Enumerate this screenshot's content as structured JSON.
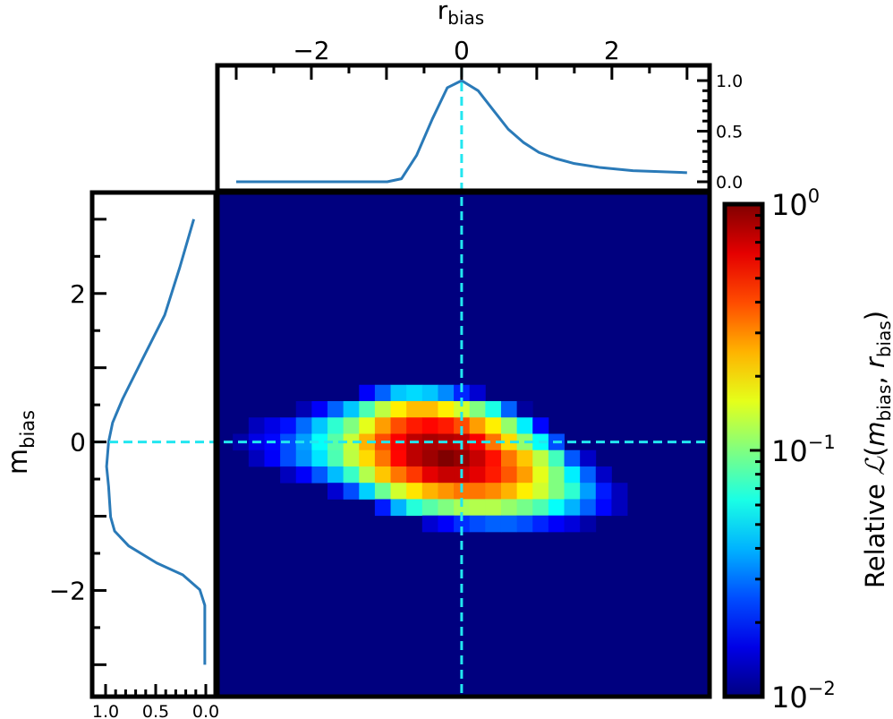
{
  "chart_data": {
    "type": "heatmap",
    "xlabel": "r",
    "xlabel_sub": "bias",
    "ylabel": "m",
    "ylabel_sub": "bias",
    "xlim": [
      -3.25,
      3.3
    ],
    "ylim": [
      -3.43,
      3.36
    ],
    "x_ticks": [
      {
        "v": -2,
        "label": "−2"
      },
      {
        "v": 0,
        "label": "0"
      },
      {
        "v": 2,
        "label": "2"
      }
    ],
    "y_ticks": [
      {
        "v": 2,
        "label": "2"
      },
      {
        "v": 0,
        "label": "0"
      },
      {
        "v": -2,
        "label": "−2"
      }
    ],
    "colormap": "jet",
    "background_color": "#00007f",
    "reference_line_color": "#22e6f0",
    "reference_lines": {
      "r": 0,
      "m": 0
    },
    "color_scale": "log",
    "color_range": [
      0.01,
      1
    ],
    "bin_width_r": 0.21,
    "bin_height_m": 0.22,
    "cells_log10": [
      {
        "m": 0.66,
        "r_start": -1.26,
        "values": [
          -1.76,
          -1.56,
          -1.36,
          -1.32,
          -1.36,
          -1.48,
          -1.68,
          -1.84
        ]
      },
      {
        "m": 0.44,
        "r_start": -2.1,
        "values": [
          -1.9,
          -1.76,
          -1.56,
          -1.36,
          -1.1,
          -0.88,
          -0.72,
          -0.62,
          -0.62,
          -0.72,
          -0.84,
          -1.0,
          -1.2,
          -1.56,
          -1.94
        ]
      },
      {
        "m": 0.22,
        "r_start": -2.73,
        "values": [
          -1.88,
          -1.8,
          -1.72,
          -1.54,
          -1.36,
          -1.16,
          -1.0,
          -0.8,
          -0.56,
          -0.4,
          -0.3,
          -0.26,
          -0.3,
          -0.4,
          -0.56,
          -0.72,
          -0.96,
          -1.28,
          -1.74
        ]
      },
      {
        "m": 0.0,
        "r_start": -2.94,
        "values": [
          -1.92,
          -1.8,
          -1.74,
          -1.6,
          -1.44,
          -1.24,
          -1.08,
          -0.86,
          -0.6,
          -0.4,
          -0.24,
          -0.12,
          -0.08,
          -0.1,
          -0.12,
          -0.24,
          -0.48,
          -0.68,
          -0.96,
          -1.24,
          -1.6
        ]
      },
      {
        "m": -0.22,
        "r_start": -2.73,
        "values": [
          -1.88,
          -1.76,
          -1.6,
          -1.46,
          -1.3,
          -1.1,
          -0.88,
          -0.68,
          -0.48,
          -0.26,
          -0.12,
          -0.06,
          0,
          -0.04,
          -0.14,
          -0.28,
          -0.48,
          -0.64,
          -0.88,
          -1.12,
          -1.58,
          -1.86
        ]
      },
      {
        "m": -0.44,
        "r_start": -2.31,
        "values": [
          -1.88,
          -1.76,
          -1.58,
          -1.38,
          -1.14,
          -0.9,
          -0.64,
          -0.48,
          -0.36,
          -0.2,
          -0.14,
          -0.14,
          -0.2,
          -0.3,
          -0.42,
          -0.56,
          -0.8,
          -1.0,
          -1.28,
          -1.56,
          -1.86
        ]
      },
      {
        "m": -0.66,
        "r_start": -1.68,
        "values": [
          -1.84,
          -1.6,
          -1.34,
          -1.04,
          -0.84,
          -0.7,
          -0.6,
          -0.54,
          -0.48,
          -0.48,
          -0.52,
          -0.6,
          -0.72,
          -0.84,
          -1.0,
          -1.16,
          -1.44,
          -1.7,
          -1.88
        ]
      },
      {
        "m": -0.88,
        "r_start": -1.05,
        "values": [
          -1.7,
          -1.4,
          -1.18,
          -1.08,
          -1.0,
          -0.92,
          -0.9,
          -0.9,
          -0.96,
          -1.02,
          -1.1,
          -1.24,
          -1.4,
          -1.56,
          -1.74,
          -1.88
        ]
      },
      {
        "m": -1.1,
        "r_start": -0.42,
        "values": [
          -1.84,
          -1.76,
          -1.66,
          -1.6,
          -1.56,
          -1.56,
          -1.6,
          -1.68,
          -1.76,
          -1.82,
          -1.92
        ]
      }
    ],
    "marginal_r": {
      "color": "#2a7ab8",
      "ylim": [
        0,
        1
      ],
      "y_ticks": [
        {
          "v": 1.0,
          "label": "1.0"
        },
        {
          "v": 0.5,
          "label": "0.5"
        },
        {
          "v": 0.0,
          "label": "0.0"
        }
      ],
      "points": [
        [
          -3.0,
          0.0
        ],
        [
          -0.99,
          0.0
        ],
        [
          -0.8,
          0.03
        ],
        [
          -0.6,
          0.26
        ],
        [
          -0.39,
          0.62
        ],
        [
          -0.19,
          0.93
        ],
        [
          0,
          1.0
        ],
        [
          0.22,
          0.9
        ],
        [
          0.43,
          0.7
        ],
        [
          0.62,
          0.52
        ],
        [
          0.82,
          0.39
        ],
        [
          1.03,
          0.29
        ],
        [
          1.25,
          0.23
        ],
        [
          1.5,
          0.18
        ],
        [
          1.85,
          0.14
        ],
        [
          2.28,
          0.11
        ],
        [
          3.0,
          0.09
        ]
      ]
    },
    "marginal_m": {
      "color": "#2a7ab8",
      "xlim": [
        1,
        0
      ],
      "x_ticks": [
        {
          "v": 1.0,
          "label": "1.0"
        },
        {
          "v": 0.5,
          "label": "0.5"
        },
        {
          "v": 0.0,
          "label": "0.0"
        }
      ],
      "points": [
        [
          0.12,
          3.0
        ],
        [
          0.26,
          2.35
        ],
        [
          0.41,
          1.71
        ],
        [
          0.63,
          1.12
        ],
        [
          0.83,
          0.58
        ],
        [
          0.93,
          0.26
        ],
        [
          0.97,
          0.0
        ],
        [
          0.99,
          -0.33
        ],
        [
          0.97,
          -0.6
        ],
        [
          0.95,
          -1.01
        ],
        [
          0.91,
          -1.2
        ],
        [
          0.77,
          -1.4
        ],
        [
          0.49,
          -1.63
        ],
        [
          0.23,
          -1.79
        ],
        [
          0.06,
          -1.99
        ],
        [
          0.01,
          -2.2
        ],
        [
          0.01,
          -3.0
        ]
      ]
    },
    "colorbar": {
      "label_prefix": "Relative ",
      "label_symbol": "ℒ",
      "label_args_open": "(",
      "label_m": "m",
      "label_sep": ", ",
      "label_r": "r",
      "label_sub": "bias",
      "label_args_close": ")",
      "ticks": [
        {
          "log10": 0,
          "base": "10",
          "exp": "0"
        },
        {
          "log10": -1,
          "base": "10",
          "exp": "−1"
        },
        {
          "log10": -2,
          "base": "10",
          "exp": "−2"
        }
      ]
    }
  }
}
